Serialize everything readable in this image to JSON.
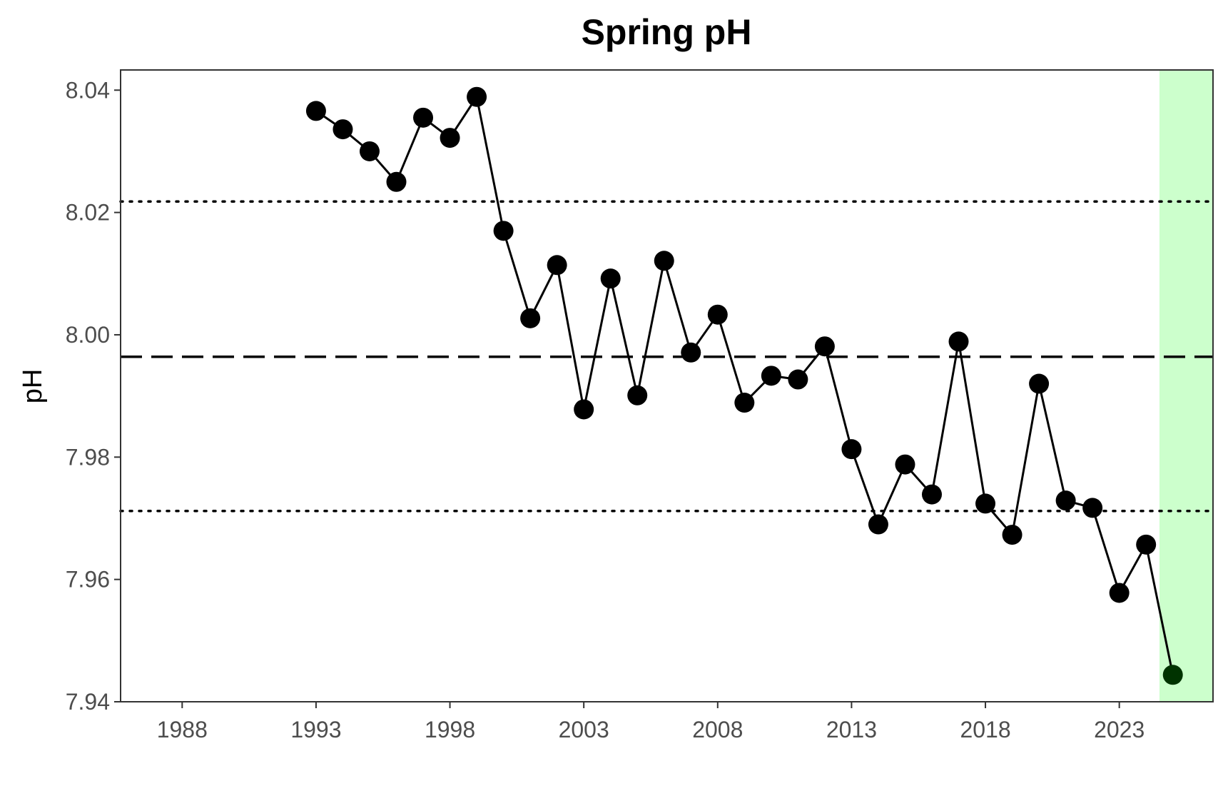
{
  "chart_data": {
    "type": "line",
    "title": "Spring pH",
    "xlabel": "",
    "ylabel": "pH",
    "xlim": [
      1985.7,
      2026.5
    ],
    "ylim": [
      7.94,
      8.0433
    ],
    "x_ticks": [
      1988,
      1993,
      1998,
      2003,
      2008,
      2013,
      2018,
      2023
    ],
    "y_ticks": [
      7.94,
      7.96,
      7.98,
      8.0,
      8.02,
      8.04
    ],
    "y_tick_labels": [
      "7.94",
      "7.96",
      "7.98",
      "8.00",
      "8.02",
      "8.04"
    ],
    "grid": false,
    "series": [
      {
        "x": [
          1993,
          1994,
          1995,
          1996,
          1997,
          1998,
          1999,
          2000,
          2001,
          2002,
          2003,
          2004,
          2005,
          2006,
          2007,
          2008,
          2009,
          2010,
          2011,
          2012,
          2013,
          2014,
          2015,
          2016,
          2017,
          2018,
          2019,
          2020,
          2021,
          2022,
          2023,
          2024,
          2025
        ],
        "values": [
          8.0366,
          8.0336,
          8.03,
          8.025,
          8.0355,
          8.0322,
          8.0389,
          8.017,
          8.0027,
          8.0114,
          7.9878,
          8.0092,
          7.9901,
          8.0121,
          7.9971,
          8.0033,
          7.9889,
          7.9933,
          7.9927,
          7.9981,
          7.9813,
          7.969,
          7.9788,
          7.9739,
          7.9989,
          7.9724,
          7.9673,
          7.992,
          7.9729,
          7.9717,
          7.9578,
          7.9657,
          7.9444
        ],
        "color": "#000000",
        "highlight_last_color": "#003300"
      }
    ],
    "reference_lines": {
      "mean": 7.9964,
      "upper": 8.0218,
      "lower": 7.9712
    },
    "highlight_region": {
      "from": 2024.5,
      "to": 2026.5,
      "color": "#ccffcc"
    }
  }
}
